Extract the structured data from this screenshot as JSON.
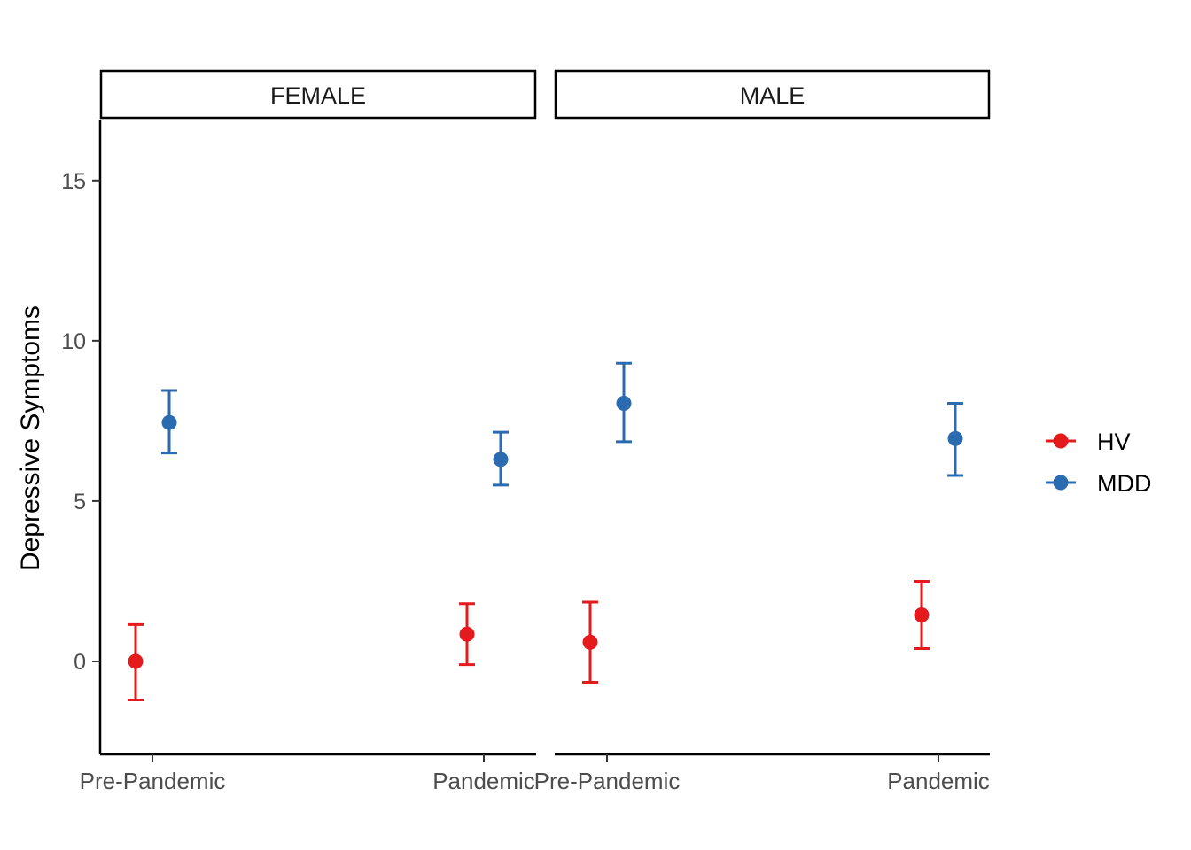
{
  "chart_data": {
    "type": "scatter",
    "subtype": "point-errorbar-faceted",
    "ylabel": "Depressive Symptoms",
    "xlabel": "",
    "ylim": [
      -2.9,
      16.9
    ],
    "yticks": [
      0,
      5,
      10,
      15
    ],
    "categories": [
      "Pre-Pandemic",
      "Pandemic"
    ],
    "facets": [
      "FEMALE",
      "MALE"
    ],
    "legend": {
      "position": "right",
      "entries": [
        "HV",
        "MDD"
      ]
    },
    "grid": false,
    "series": [
      {
        "name": "HV",
        "color": "#E41A1C",
        "panels": [
          {
            "facet": "FEMALE",
            "points": [
              {
                "x": "Pre-Pandemic",
                "y": 0.0,
                "ymin": -1.2,
                "ymax": 1.15
              },
              {
                "x": "Pandemic",
                "y": 0.85,
                "ymin": -0.1,
                "ymax": 1.8
              }
            ]
          },
          {
            "facet": "MALE",
            "points": [
              {
                "x": "Pre-Pandemic",
                "y": 0.6,
                "ymin": -0.65,
                "ymax": 1.85
              },
              {
                "x": "Pandemic",
                "y": 1.45,
                "ymin": 0.4,
                "ymax": 2.5
              }
            ]
          }
        ]
      },
      {
        "name": "MDD",
        "color": "#2B6BB0",
        "panels": [
          {
            "facet": "FEMALE",
            "points": [
              {
                "x": "Pre-Pandemic",
                "y": 7.45,
                "ymin": 6.5,
                "ymax": 8.45
              },
              {
                "x": "Pandemic",
                "y": 6.3,
                "ymin": 5.5,
                "ymax": 7.15
              }
            ]
          },
          {
            "facet": "MALE",
            "points": [
              {
                "x": "Pre-Pandemic",
                "y": 8.05,
                "ymin": 6.85,
                "ymax": 9.3
              },
              {
                "x": "Pandemic",
                "y": 6.95,
                "ymin": 5.8,
                "ymax": 8.05
              }
            ]
          }
        ]
      }
    ]
  }
}
